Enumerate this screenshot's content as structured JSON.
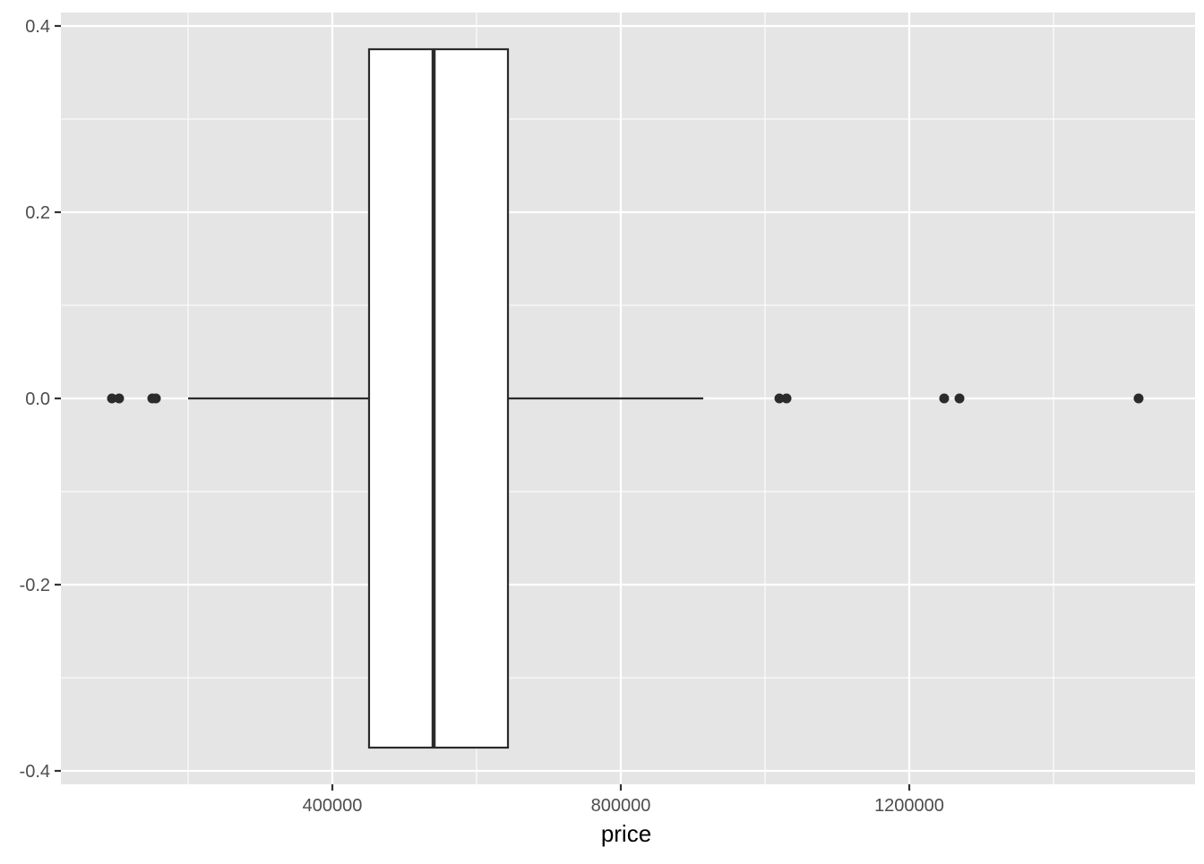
{
  "chart_data": {
    "type": "boxplot",
    "orientation": "horizontal",
    "xlabel": "price",
    "ylabel": "",
    "xlim": [
      23600,
      1596300
    ],
    "ylim": [
      -0.42,
      0.42
    ],
    "x_ticks": [
      400000,
      800000,
      1200000
    ],
    "x_tick_labels": [
      "400000",
      "800000",
      "1200000"
    ],
    "x_minor_ticks": [
      200000,
      600000,
      1000000,
      1400000
    ],
    "y_ticks": [
      -0.4,
      -0.2,
      0.0,
      0.2,
      0.4
    ],
    "y_tick_labels": [
      "-0.4",
      "-0.2",
      "0.0",
      "0.2",
      "0.4"
    ],
    "y_minor_ticks": [
      -0.3,
      -0.1,
      0.1,
      0.3
    ],
    "grid": true,
    "box": {
      "whisker_low": 200000,
      "q1": 450900,
      "median": 540400,
      "q3": 643500,
      "whisker_high": 914300,
      "y_center": 0,
      "half_width": 0.375
    },
    "outliers": [
      94400,
      104300,
      150300,
      155300,
      1019900,
      1029800,
      1248400,
      1269600,
      1518000
    ],
    "colors": {
      "panel": "#e5e5e5",
      "grid": "#ffffff",
      "box_fill": "#ffffff",
      "line": "#2b2b2b",
      "text": "#4d4d4d"
    }
  }
}
